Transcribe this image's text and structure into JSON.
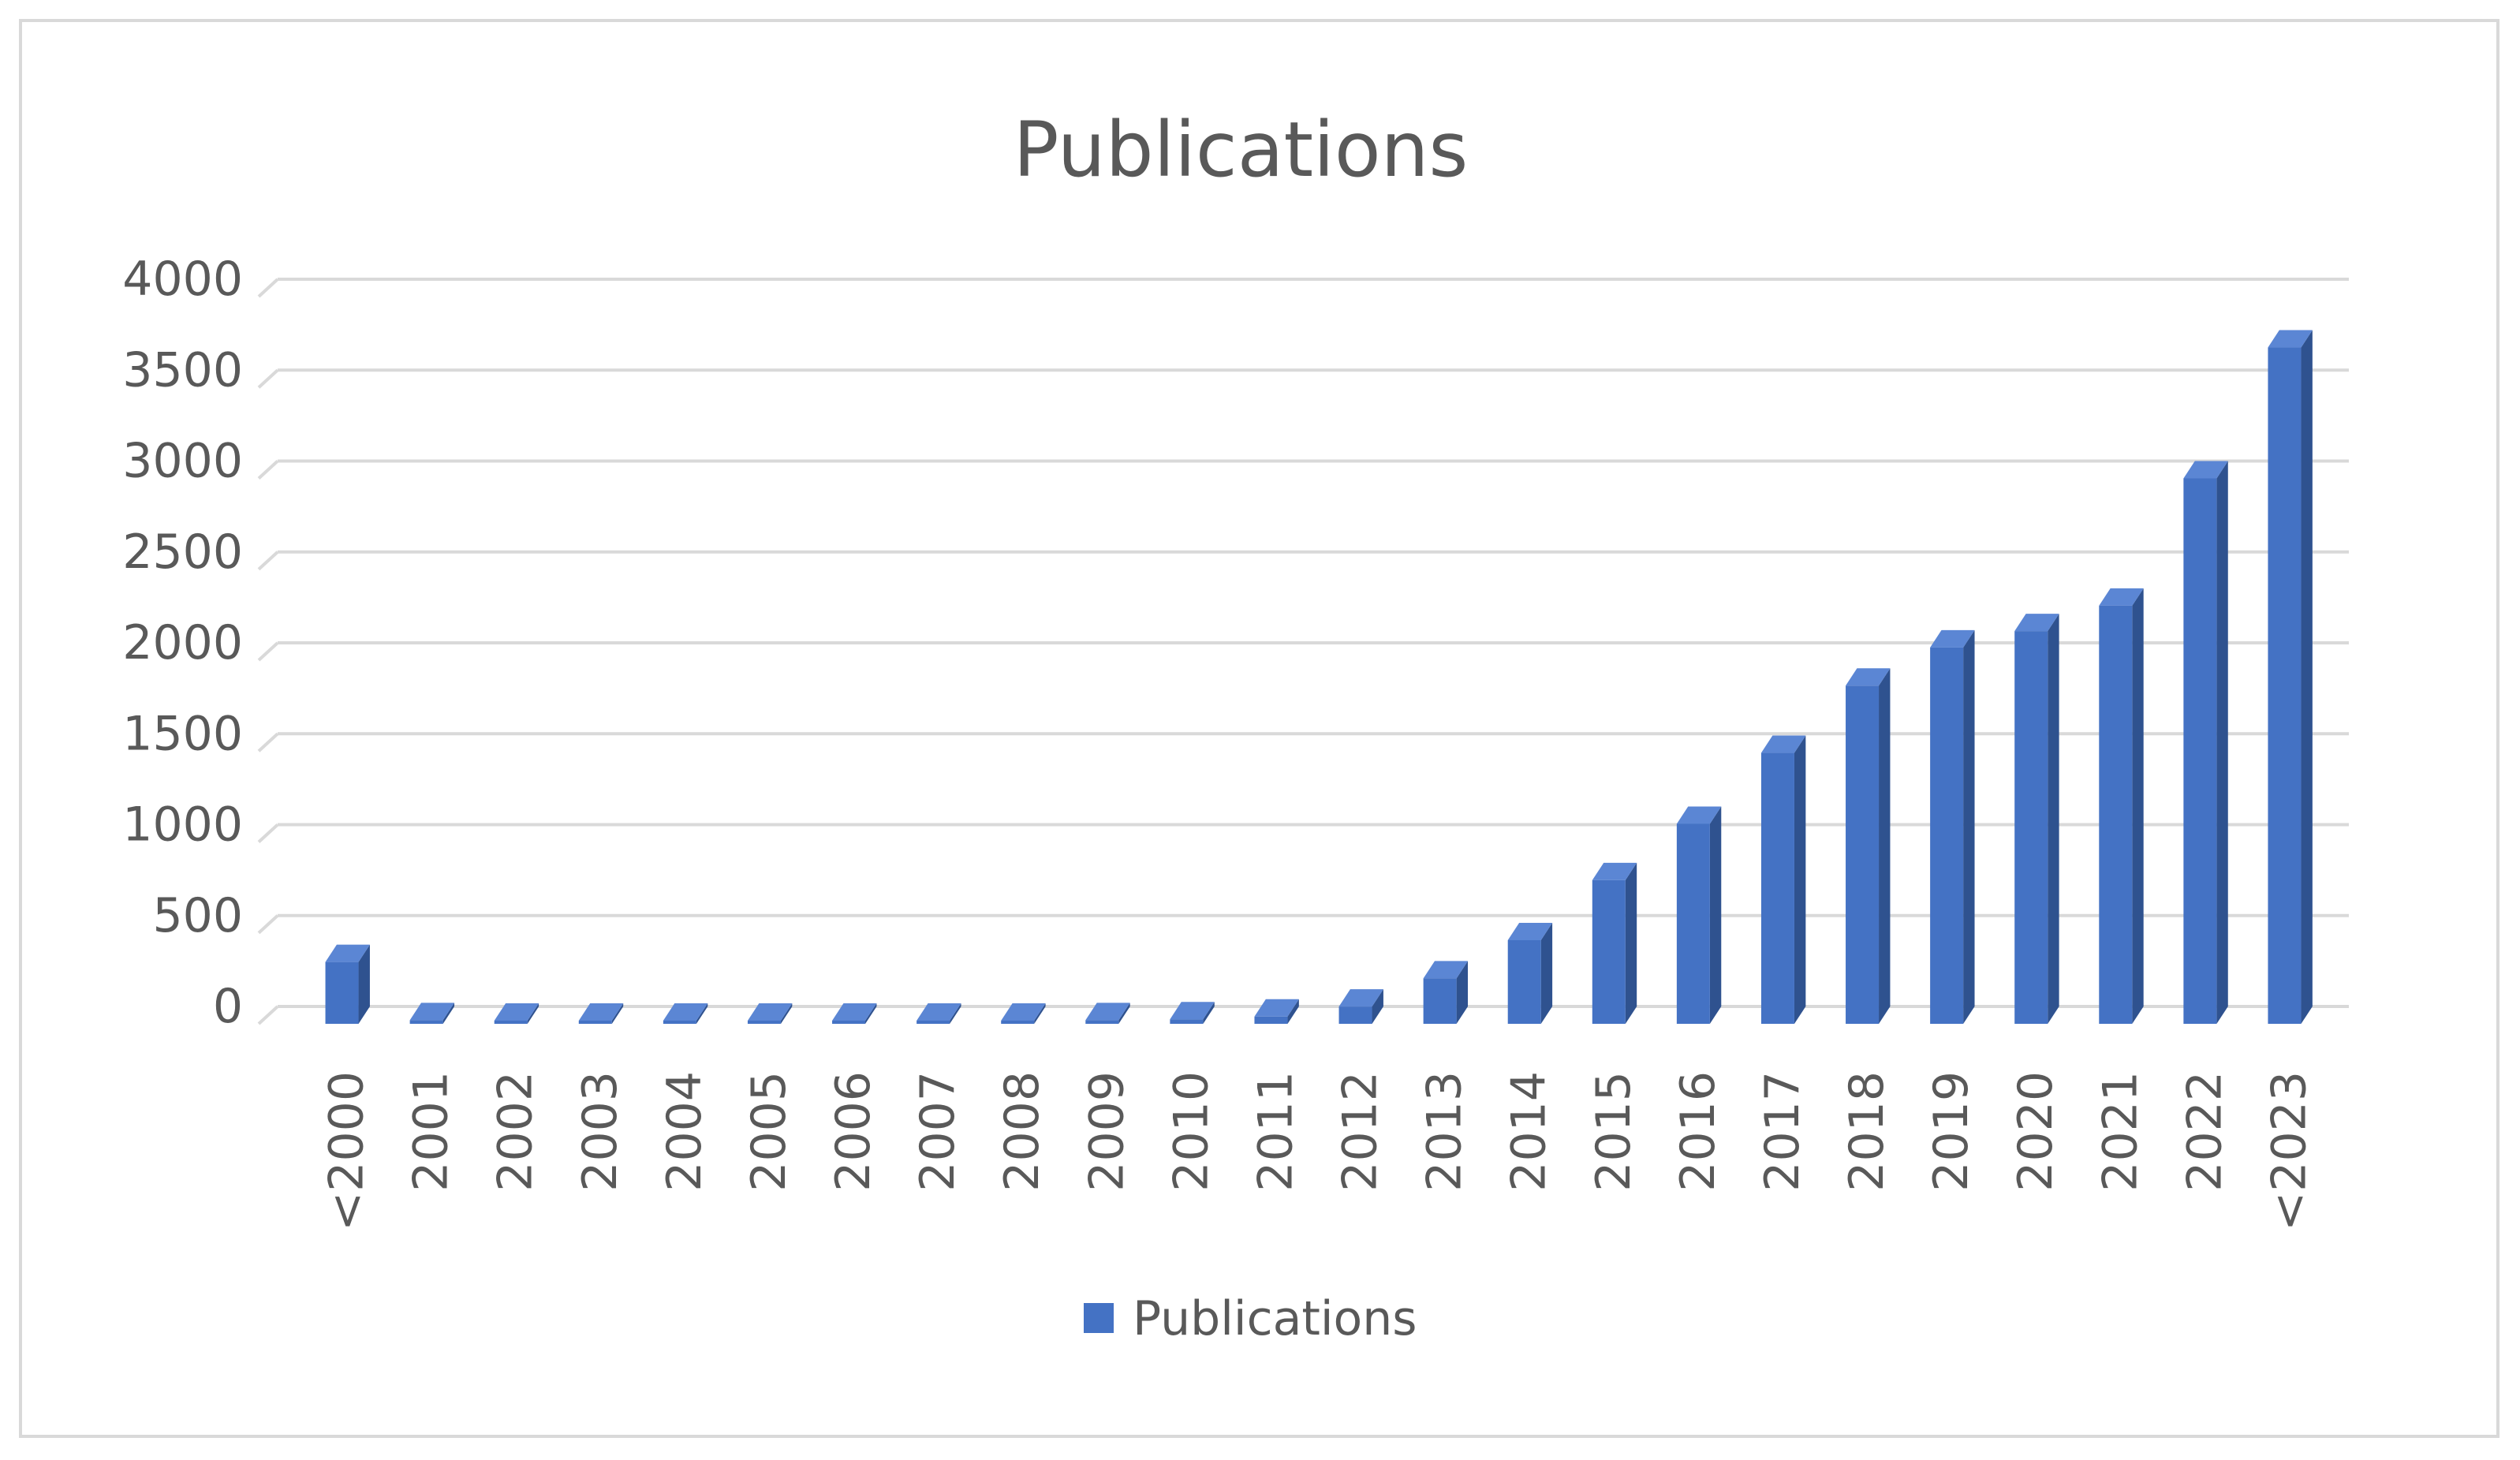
{
  "chart_data": {
    "type": "bar",
    "title": "Publications",
    "xlabel": "",
    "ylabel": "",
    "categories": [
      "<2000",
      "2001",
      "2002",
      "2003",
      "2004",
      "2005",
      "2006",
      "2007",
      "2008",
      "2009",
      "2010",
      "2011",
      "2012",
      "2013",
      "2014",
      "2015",
      "2016",
      "2017",
      "2018",
      "2019",
      "2020",
      "2021",
      "2022",
      "<2023"
    ],
    "series": [
      {
        "name": "Publications",
        "color": "#4472c4",
        "values": [
          340,
          20,
          15,
          10,
          8,
          10,
          15,
          15,
          12,
          20,
          25,
          40,
          95,
          250,
          460,
          790,
          1100,
          1490,
          1860,
          2070,
          2160,
          2300,
          3000,
          3720
        ]
      }
    ],
    "ylim": [
      0,
      4000
    ],
    "yticks": [
      0,
      500,
      1000,
      1500,
      2000,
      2500,
      3000,
      3500,
      4000
    ],
    "grid": true,
    "legend_position": "bottom",
    "bar_style": "3d-column",
    "colors": {
      "bar_front": "#4472c4",
      "bar_side": "#2f528f",
      "bar_top": "#5b86d4",
      "gridline": "#d9d9d9",
      "text": "#595959"
    }
  }
}
